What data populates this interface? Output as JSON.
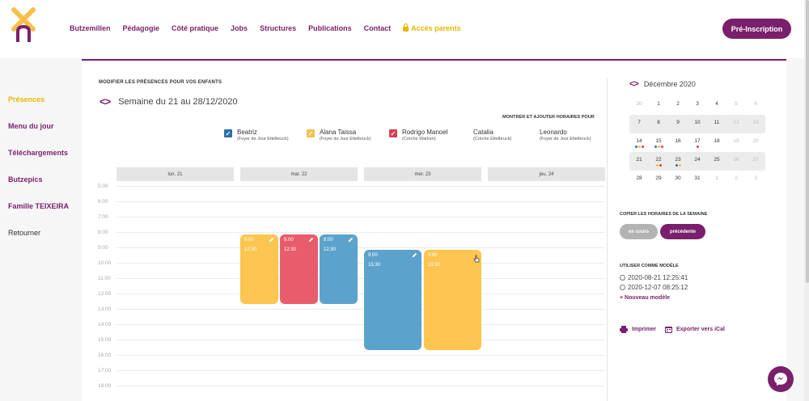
{
  "header": {
    "nav": [
      "Butzemillen",
      "Pédagogie",
      "Côté pratique",
      "Jobs",
      "Structures",
      "Publications",
      "Contact"
    ],
    "parents_link": "Accès parents",
    "cta": "Pré-Inscription"
  },
  "sidebar": {
    "items": [
      "Présences",
      "Menu du jour",
      "Téléchargements",
      "Butzepics",
      "Famille TEIXEIRA",
      "Retourner"
    ]
  },
  "main": {
    "title": "Modifier les présences pour vos enfants",
    "week": "Semaine du 21 au 28/12/2020",
    "show_label": "Montrer et ajouter horaires pour",
    "children": [
      {
        "name": "Beatriz",
        "place": "(Foyer de Jour Ettelbruck)",
        "checked": true,
        "color": "#2e6fa8"
      },
      {
        "name": "Alana Taissa",
        "place": "(Foyer de Jour Ettelbruck)",
        "checked": true,
        "color": "#f5c04d"
      },
      {
        "name": "Rodrigo Manoel",
        "place": "(Crèche Warken)",
        "checked": true,
        "color": "#d6404f"
      },
      {
        "name": "Catalia",
        "place": "(Crèche Ettelbruck)",
        "checked": false,
        "color": ""
      },
      {
        "name": "Leonardo",
        "place": "(Foyer de Jour Ettelbruck)",
        "checked": false,
        "color": ""
      }
    ],
    "days": [
      "lun. 21",
      "mar. 22",
      "mer. 23",
      "jeu. 24"
    ],
    "hours": [
      "5:00",
      "6:00",
      "7:00",
      "8:00",
      "9:00",
      "10:00",
      "11:00",
      "12:00",
      "13:00",
      "14:00",
      "15:00",
      "16:00",
      "17:00",
      "18:00"
    ],
    "blocks": [
      {
        "start": "8:00",
        "end": "12:30",
        "color": "#fcc54f"
      },
      {
        "start": "8:00",
        "end": "12:30",
        "color": "#e85c6c"
      },
      {
        "start": "8:00",
        "end": "12:30",
        "color": "#5ba3cc"
      },
      {
        "start": "9:00",
        "end": "15:30",
        "color": "#5ba3cc"
      },
      {
        "start": "9:00",
        "end": "15:30",
        "color": "#fcc54f"
      }
    ]
  },
  "calendar": {
    "month": "Décembre 2020",
    "weeks": [
      [
        "30",
        "1",
        "2",
        "3",
        "4",
        "5",
        "6"
      ],
      [
        "7",
        "8",
        "9",
        "10",
        "11",
        "12",
        "13"
      ],
      [
        "14",
        "15",
        "16",
        "17",
        "18",
        "19",
        "20"
      ],
      [
        "21",
        "22",
        "23",
        "24",
        "25",
        "26",
        "27"
      ],
      [
        "28",
        "29",
        "30",
        "31",
        "1",
        "2",
        "3"
      ]
    ]
  },
  "actions": {
    "copy_label": "Copier les horaires de la semaine",
    "current": "en cours",
    "previous": "précédente",
    "model_label": "Utiliser comme modèle",
    "models": [
      "2020-08-21 12:25:41",
      "2020-12-07 08:25:12"
    ],
    "new_model": "+ Nouveau modèle",
    "print": "Imprimer",
    "export": "Exporter vers iCal"
  },
  "colors": {
    "brand": "#7a1f6b",
    "accent": "#e6b800"
  },
  "icons": [
    "logo-windmill-icon",
    "lock-icon",
    "chevron-left-right-icon",
    "pencil-icon",
    "print-icon",
    "calendar-export-icon",
    "messenger-icon"
  ]
}
